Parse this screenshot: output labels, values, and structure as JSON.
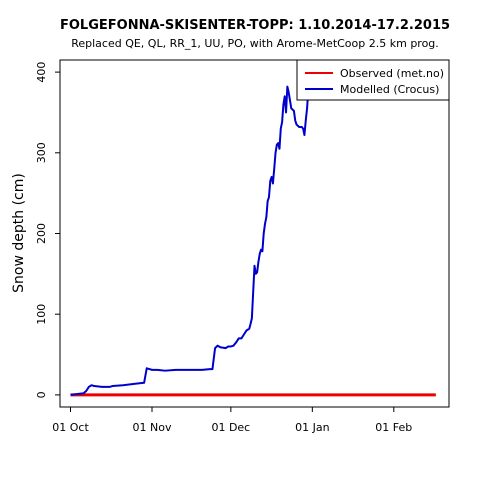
{
  "chart_data": {
    "type": "line",
    "title": "FOLGEFONNA-SKISENTER-TOPP: 1.10.2014-17.2.2015",
    "subtitle": "Replaced QE, QL, RR_1, UU, PO,  with Arome-MetCoop 2.5 km prog.",
    "ylabel": "Snow depth (cm)",
    "xlabel": "",
    "xlim_day": [
      -4,
      144
    ],
    "ylim": [
      -15,
      415
    ],
    "yticks": [
      0,
      100,
      200,
      300,
      400
    ],
    "xticks": [
      {
        "day": 0,
        "label": "01 Oct"
      },
      {
        "day": 31,
        "label": "01 Nov"
      },
      {
        "day": 61,
        "label": "01 Dec"
      },
      {
        "day": 92,
        "label": "01 Jan"
      },
      {
        "day": 123,
        "label": "01 Feb"
      }
    ],
    "legend_position": "top-right",
    "series": [
      {
        "name": "Observed (met.no)",
        "color": "#ee0000",
        "x_day": [
          0,
          139
        ],
        "y": [
          0,
          0
        ]
      },
      {
        "name": "Modelled (Crocus)",
        "color": "#0000cc",
        "x_day": [
          0,
          5,
          6,
          7,
          8,
          9,
          12,
          14,
          15,
          16,
          20,
          25,
          28,
          29,
          30,
          31,
          33,
          36,
          40,
          45,
          50,
          53,
          54,
          55,
          56,
          57,
          59,
          60,
          61,
          62,
          63,
          64,
          65,
          66,
          67,
          68,
          68.5,
          69,
          70,
          70.5,
          71,
          71.5,
          72,
          72.5,
          73,
          73.5,
          74,
          74.5,
          75,
          75.5,
          76,
          76.5,
          77,
          77.5,
          78,
          78.5,
          79,
          79.5,
          80,
          80.5,
          81,
          81.5,
          82,
          82.5,
          83,
          84,
          85,
          85.5,
          86,
          87,
          88,
          88.5,
          89,
          89.5,
          90,
          90.5,
          91,
          91.5,
          92,
          93,
          94,
          95,
          96,
          97,
          98,
          99,
          100,
          101
        ],
        "y": [
          0,
          2,
          5,
          10,
          12,
          11,
          10,
          10,
          10,
          11,
          12,
          14,
          15,
          33,
          32,
          31,
          31,
          30,
          31,
          31,
          31,
          32,
          32,
          58,
          61,
          59,
          58,
          60,
          60,
          61,
          65,
          70,
          70,
          75,
          80,
          82,
          88,
          95,
          160,
          150,
          152,
          165,
          175,
          180,
          178,
          200,
          212,
          220,
          240,
          245,
          265,
          270,
          262,
          280,
          300,
          310,
          312,
          305,
          330,
          338,
          360,
          370,
          350,
          382,
          375,
          355,
          352,
          340,
          335,
          332,
          332,
          330,
          322,
          340,
          355,
          380,
          383,
          379,
          368,
          372,
          382,
          375,
          385,
          415,
          416,
          413,
          417,
          418
        ]
      }
    ]
  }
}
